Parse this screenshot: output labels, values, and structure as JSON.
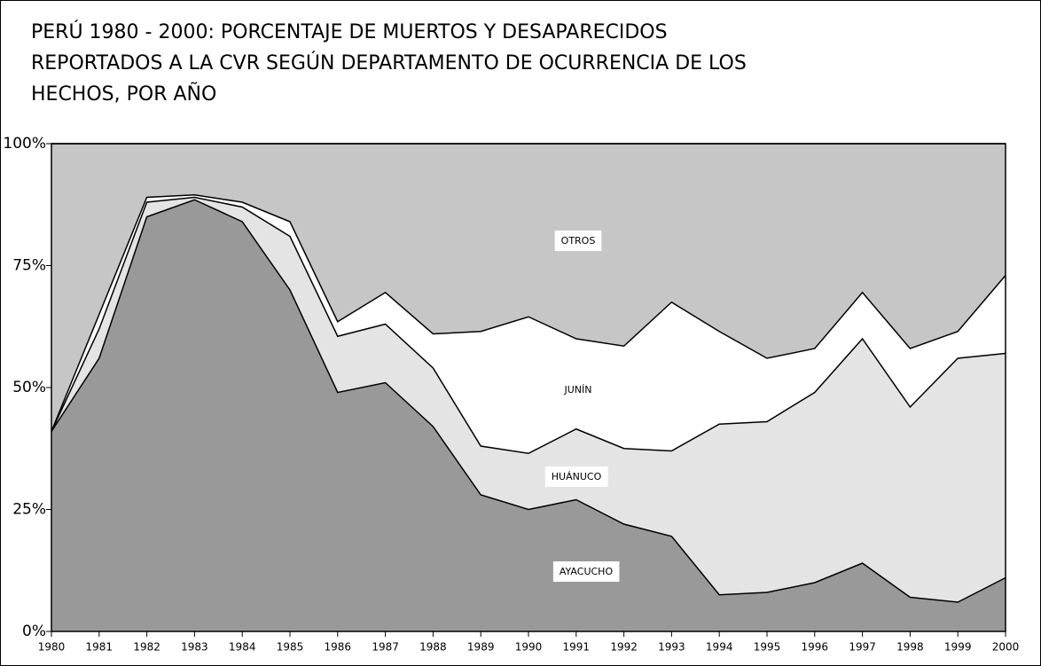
{
  "chart_data": {
    "type": "stacked_area",
    "title": [
      "PERÚ 1980 - 2000: PORCENTAJE DE MUERTOS Y DESAPARECIDOS",
      "REPORTADOS A LA CVR SEGÚN DEPARTAMENTO DE OCURRENCIA DE LOS",
      "HECHOS, POR AÑO"
    ],
    "x": [
      1980,
      1981,
      1982,
      1983,
      1984,
      1985,
      1986,
      1987,
      1988,
      1989,
      1990,
      1991,
      1992,
      1993,
      1994,
      1995,
      1996,
      1997,
      1998,
      1999,
      2000
    ],
    "xlim": [
      1980,
      2000
    ],
    "ylim": [
      0,
      100
    ],
    "yticks": [
      {
        "value": 0,
        "label": "0%"
      },
      {
        "value": 25,
        "label": "25%"
      },
      {
        "value": 50,
        "label": "50%"
      },
      {
        "value": 75,
        "label": "75%"
      },
      {
        "value": 100,
        "label": "100%"
      }
    ],
    "series": [
      {
        "name": "AYACUCHO",
        "color": "#999999",
        "values": [
          41,
          56,
          85,
          88.5,
          84,
          70,
          49,
          51,
          42,
          28,
          25,
          27,
          22,
          19.5,
          7.5,
          8,
          10,
          14,
          7,
          6,
          11
        ]
      },
      {
        "name": "HUÁNUCO",
        "color": "#e4e4e4",
        "values": [
          0,
          6,
          3,
          0.5,
          3,
          11,
          11.5,
          12,
          12,
          10,
          11.5,
          14.5,
          15.5,
          17.5,
          35,
          35,
          39,
          46,
          39,
          50,
          46
        ]
      },
      {
        "name": "JUNÍN",
        "color": "#ffffff",
        "values": [
          0,
          3,
          1,
          0.5,
          1,
          3,
          3,
          6.5,
          7,
          23.5,
          28,
          18.5,
          21,
          30.5,
          19,
          13,
          9,
          9.5,
          12,
          5.5,
          16
        ]
      },
      {
        "name": "OTROS",
        "color": "#c6c6c6",
        "values": [
          59,
          35,
          11,
          10.5,
          12,
          16,
          36.5,
          30.5,
          39,
          38.5,
          35.5,
          40,
          41.5,
          32.5,
          38.5,
          44,
          42,
          30.5,
          42,
          38.5,
          27
        ]
      }
    ]
  }
}
